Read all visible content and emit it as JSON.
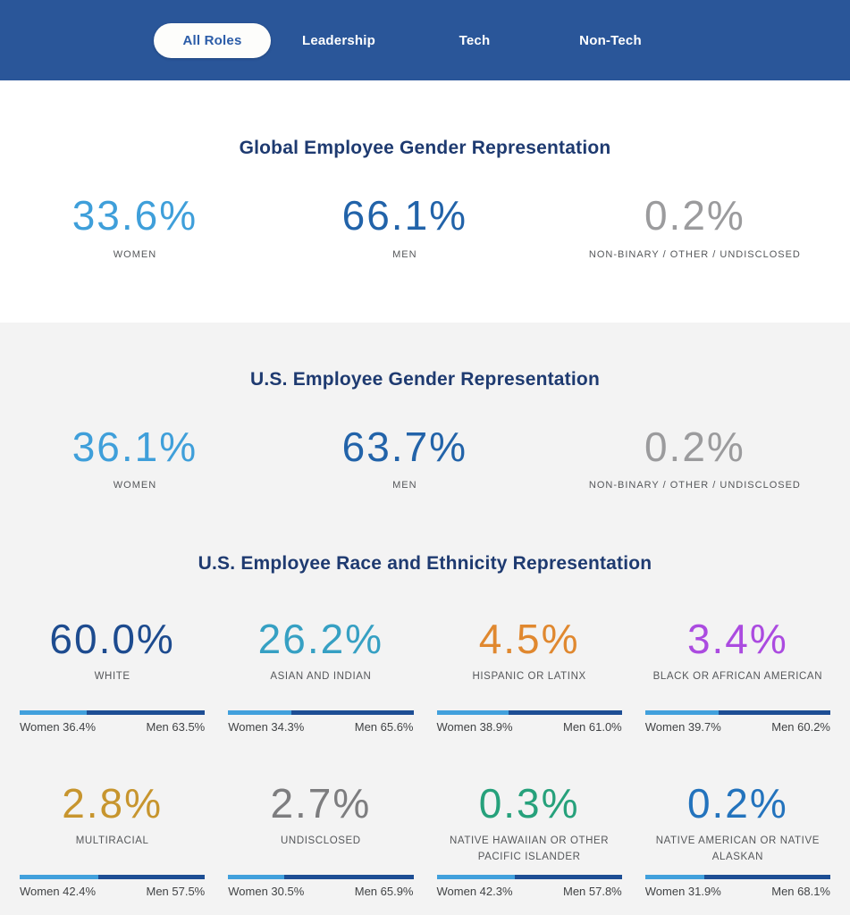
{
  "header": {
    "background": "#2a5699",
    "tabs": [
      {
        "label": "All Roles",
        "active": true
      },
      {
        "label": "Leadership",
        "active": false
      },
      {
        "label": "Tech",
        "active": false
      },
      {
        "label": "Non-Tech",
        "active": false
      }
    ]
  },
  "global_gender": {
    "title": "Global Employee Gender Representation",
    "stats": [
      {
        "value": "33.6%",
        "label": "WOMEN",
        "color": "#3f9fda"
      },
      {
        "value": "66.1%",
        "label": "MEN",
        "color": "#2263a9"
      },
      {
        "value": "0.2%",
        "label": "NON-BINARY / OTHER / UNDISCLOSED",
        "color": "#9b9b9d"
      }
    ]
  },
  "us_gender": {
    "title": "U.S. Employee Gender Representation",
    "stats": [
      {
        "value": "36.1%",
        "label": "WOMEN",
        "color": "#3f9fda"
      },
      {
        "value": "63.7%",
        "label": "MEN",
        "color": "#2263a9"
      },
      {
        "value": "0.2%",
        "label": "NON-BINARY / OTHER / UNDISCLOSED",
        "color": "#9b9b9d"
      }
    ]
  },
  "us_race": {
    "title": "U.S. Employee Race and Ethnicity Representation",
    "bar_colors": {
      "women": "#41a0dc",
      "men": "#1d4e94"
    },
    "cards": [
      {
        "value": "60.0%",
        "label": "WHITE",
        "color": "#1d4b8f",
        "women_pct": 36.4,
        "women_label": "Women 36.4%",
        "men_label": "Men 63.5%"
      },
      {
        "value": "26.2%",
        "label": "ASIAN AND INDIAN",
        "color": "#36a0c3",
        "women_pct": 34.3,
        "women_label": "Women 34.3%",
        "men_label": "Men 65.6%"
      },
      {
        "value": "4.5%",
        "label": "HISPANIC OR LATINX",
        "color": "#e0882f",
        "women_pct": 38.9,
        "women_label": "Women 38.9%",
        "men_label": "Men 61.0%"
      },
      {
        "value": "3.4%",
        "label": "BLACK OR AFRICAN AMERICAN",
        "color": "#ab4be0",
        "women_pct": 39.7,
        "women_label": "Women 39.7%",
        "men_label": "Men 60.2%"
      },
      {
        "value": "2.8%",
        "label": "MULTIRACIAL",
        "color": "#c7952e",
        "women_pct": 42.4,
        "women_label": "Women 42.4%",
        "men_label": "Men 57.5%"
      },
      {
        "value": "2.7%",
        "label": "UNDISCLOSED",
        "color": "#7d7d7f",
        "women_pct": 30.5,
        "women_label": "Women 30.5%",
        "men_label": "Men 65.9%"
      },
      {
        "value": "0.3%",
        "label": "NATIVE HAWAIIAN OR OTHER PACIFIC ISLANDER",
        "color": "#26a17b",
        "women_pct": 42.3,
        "women_label": "Women 42.3%",
        "men_label": "Men 57.8%"
      },
      {
        "value": "0.2%",
        "label": "NATIVE AMERICAN OR NATIVE ALASKAN",
        "color": "#2373bd",
        "women_pct": 31.9,
        "women_label": "Women 31.9%",
        "men_label": "Men 68.1%"
      }
    ]
  }
}
